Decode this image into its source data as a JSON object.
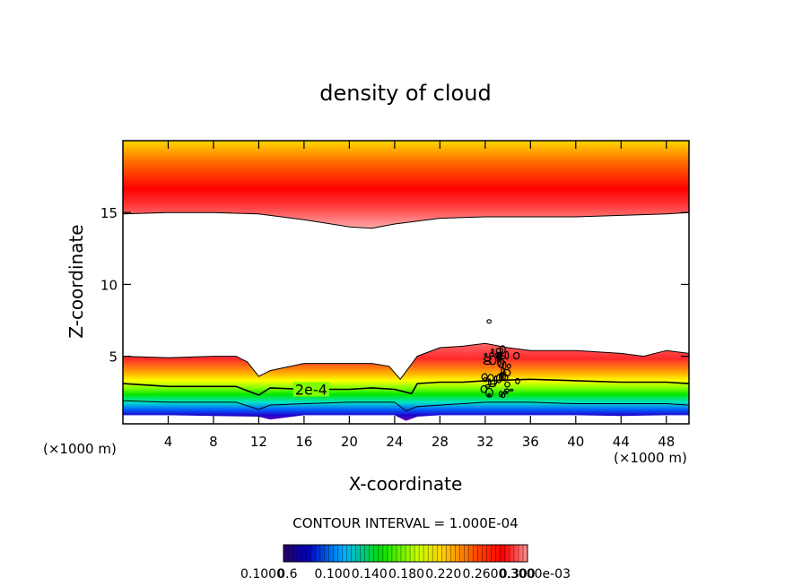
{
  "chart_data": {
    "type": "contour",
    "title": "density of cloud",
    "xlabel": "X-coordinate",
    "ylabel": "Z-coordinate",
    "x_unit_left": "(×1000 m)",
    "x_unit_right": "(×1000 m)",
    "xlim": [
      0,
      50
    ],
    "ylim": [
      0.3,
      20
    ],
    "xticks": [
      4,
      8,
      12,
      16,
      20,
      24,
      28,
      32,
      36,
      40,
      44,
      48
    ],
    "yticks": [
      5,
      10,
      15
    ],
    "contour_label": "2e-4",
    "contour_interval_text": "CONTOUR INTERVAL = 1.000E-04",
    "colorbar_labels": [
      "0.1000",
      "0.6",
      "0.100",
      "0.140",
      "0.180",
      "0.220",
      "0.260",
      "0.300",
      "0.3000e-03"
    ],
    "colors": {
      "upper_band": [
        "#ffaaaa",
        "#ff3c3c",
        "#ff0000",
        "#ff6a00",
        "#ffd800"
      ],
      "lower_band": [
        "#ff6666",
        "#ff2a2a",
        "#ffaa00",
        "#ffff00",
        "#7cff00",
        "#00e600",
        "#00e6c8",
        "#0064ff",
        "#2000cc",
        "#7a00b4"
      ]
    },
    "contours": {
      "upper_cloud_base": [
        [
          0,
          14.9
        ],
        [
          4,
          15.0
        ],
        [
          8,
          15.0
        ],
        [
          12,
          14.9
        ],
        [
          16,
          14.5
        ],
        [
          20,
          14.0
        ],
        [
          22,
          13.9
        ],
        [
          24,
          14.2
        ],
        [
          28,
          14.6
        ],
        [
          32,
          14.7
        ],
        [
          36,
          14.7
        ],
        [
          40,
          14.7
        ],
        [
          44,
          14.8
        ],
        [
          48,
          14.9
        ],
        [
          50,
          15.0
        ]
      ],
      "lower_cloud_top": [
        [
          0,
          5.0
        ],
        [
          4,
          4.9
        ],
        [
          8,
          5.0
        ],
        [
          10,
          5.0
        ],
        [
          11,
          4.6
        ],
        [
          12,
          3.6
        ],
        [
          13,
          4.0
        ],
        [
          16,
          4.5
        ],
        [
          20,
          4.5
        ],
        [
          22,
          4.5
        ],
        [
          23.5,
          4.3
        ],
        [
          24.5,
          3.4
        ],
        [
          26,
          5.0
        ],
        [
          28,
          5.6
        ],
        [
          30,
          5.7
        ],
        [
          32,
          5.9
        ],
        [
          34,
          5.6
        ],
        [
          36,
          5.4
        ],
        [
          40,
          5.4
        ],
        [
          44,
          5.2
        ],
        [
          46,
          5.0
        ],
        [
          48,
          5.4
        ],
        [
          50,
          5.2
        ]
      ],
      "level_2e-4": [
        [
          0,
          3.1
        ],
        [
          4,
          2.9
        ],
        [
          8,
          2.9
        ],
        [
          10,
          2.9
        ],
        [
          11,
          2.6
        ],
        [
          12,
          2.3
        ],
        [
          13,
          2.8
        ],
        [
          16,
          2.7
        ],
        [
          20,
          2.7
        ],
        [
          22,
          2.8
        ],
        [
          24,
          2.7
        ],
        [
          25.5,
          2.4
        ],
        [
          26,
          3.1
        ],
        [
          28,
          3.2
        ],
        [
          30,
          3.2
        ],
        [
          32,
          3.3
        ],
        [
          36,
          3.4
        ],
        [
          40,
          3.3
        ],
        [
          44,
          3.2
        ],
        [
          48,
          3.2
        ],
        [
          50,
          3.1
        ]
      ],
      "low_level": [
        [
          0,
          1.9
        ],
        [
          4,
          1.8
        ],
        [
          8,
          1.8
        ],
        [
          10,
          1.8
        ],
        [
          12,
          1.3
        ],
        [
          13,
          1.6
        ],
        [
          16,
          1.7
        ],
        [
          20,
          1.8
        ],
        [
          24,
          1.8
        ],
        [
          25,
          1.2
        ],
        [
          26,
          1.5
        ],
        [
          28,
          1.6
        ],
        [
          32,
          1.8
        ],
        [
          36,
          1.8
        ],
        [
          40,
          1.7
        ],
        [
          44,
          1.7
        ],
        [
          48,
          1.7
        ],
        [
          50,
          1.6
        ]
      ],
      "lower_cloud_base": [
        [
          0,
          0.9
        ],
        [
          4,
          0.9
        ],
        [
          8,
          0.85
        ],
        [
          12,
          0.8
        ],
        [
          13,
          0.6
        ],
        [
          16,
          0.9
        ],
        [
          20,
          0.9
        ],
        [
          24,
          0.9
        ],
        [
          25,
          0.5
        ],
        [
          26,
          0.8
        ],
        [
          28,
          0.9
        ],
        [
          32,
          0.9
        ],
        [
          36,
          0.9
        ],
        [
          40,
          0.9
        ],
        [
          44,
          0.85
        ],
        [
          48,
          0.9
        ],
        [
          50,
          0.9
        ]
      ]
    }
  }
}
